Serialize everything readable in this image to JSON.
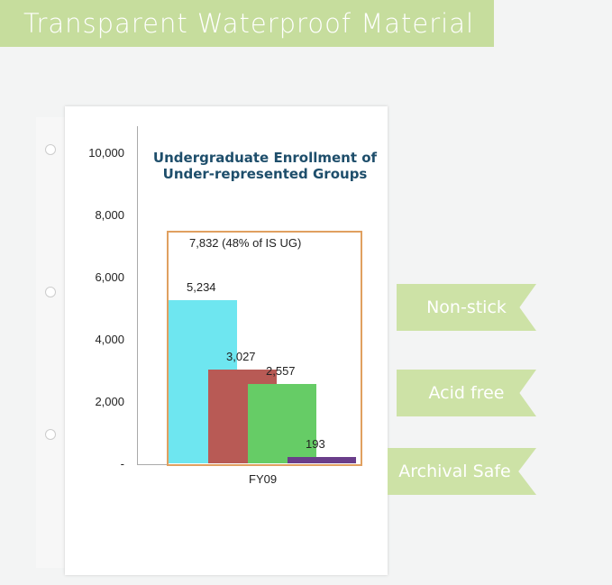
{
  "banner": {
    "title": "Transparent Waterproof Material"
  },
  "features": [
    "Non-stick",
    "Acid free",
    "Archival Safe"
  ],
  "colors": {
    "banner": "#c6dd9d",
    "ribbon": "#cde2a6",
    "title": "#1e4e6b",
    "box": "#e0a060"
  },
  "chart_data": {
    "type": "bar",
    "title": "Undergraduate Enrollment of Under-represented Groups",
    "categories": [
      "FY09"
    ],
    "yticks": [
      "10,000",
      "8,000",
      "6,000",
      "4,000",
      "2,000",
      "-"
    ],
    "ylim": [
      0,
      10000
    ],
    "annotation": "7,832 (48% of IS UG)",
    "series": [
      {
        "value": 5234,
        "label": "5,234",
        "color": "#6ee6f0"
      },
      {
        "value": 3027,
        "label": "3,027",
        "color": "#b85a55"
      },
      {
        "value": 2557,
        "label": "2,557",
        "color": "#66cc66"
      },
      {
        "value": 193,
        "label": "193",
        "color": "#6a3d8a"
      }
    ]
  }
}
